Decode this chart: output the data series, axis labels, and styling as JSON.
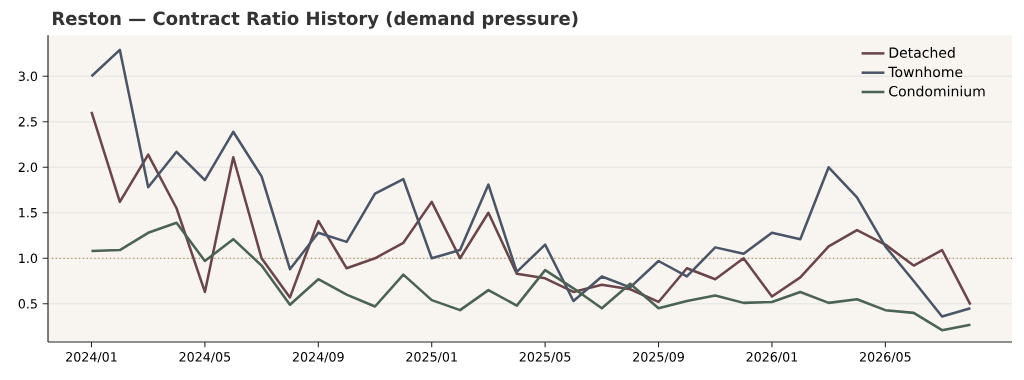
{
  "chart_data": {
    "type": "line",
    "title": "Reston — Contract Ratio History (demand pressure)",
    "x": [
      "2024-01",
      "2024-02",
      "2024-03",
      "2024-04",
      "2024-05",
      "2024-06",
      "2024-07",
      "2024-08",
      "2024-09",
      "2024-10",
      "2024-11",
      "2024-12",
      "2025-01",
      "2025-02",
      "2025-03",
      "2025-04",
      "2025-05",
      "2025-06",
      "2025-07",
      "2025-08",
      "2025-09",
      "2025-10",
      "2025-11",
      "2025-12",
      "2026-01",
      "2026-02",
      "2026-03",
      "2026-04",
      "2026-05",
      "2026-06",
      "2026-07",
      "2026-08"
    ],
    "series": [
      {
        "name": "Detached",
        "color": "#6b4549",
        "values": [
          2.61,
          1.62,
          2.14,
          1.55,
          0.63,
          2.11,
          1.0,
          0.57,
          1.41,
          0.89,
          1.0,
          1.17,
          1.62,
          1.0,
          1.5,
          0.83,
          0.78,
          0.63,
          0.71,
          0.66,
          0.52,
          0.89,
          0.77,
          1.0,
          0.58,
          0.79,
          1.13,
          1.31,
          1.15,
          0.92,
          1.09,
          0.49
        ]
      },
      {
        "name": "Townhome",
        "color": "#4a5568",
        "values": [
          3.0,
          3.29,
          1.78,
          2.17,
          1.86,
          2.39,
          1.9,
          0.88,
          1.28,
          1.18,
          1.71,
          1.87,
          1.0,
          1.09,
          1.81,
          0.85,
          1.15,
          0.53,
          0.8,
          0.68,
          0.97,
          0.8,
          1.12,
          1.05,
          1.28,
          1.21,
          2.0,
          1.67,
          1.13,
          0.75,
          0.36,
          0.45
        ]
      },
      {
        "name": "Condominium",
        "color": "#4b6352",
        "values": [
          1.08,
          1.09,
          1.28,
          1.39,
          0.97,
          1.21,
          0.92,
          0.49,
          0.77,
          0.6,
          0.47,
          0.82,
          0.54,
          0.43,
          0.65,
          0.48,
          0.87,
          0.67,
          0.45,
          0.72,
          0.45,
          0.53,
          0.59,
          0.51,
          0.52,
          0.63,
          0.51,
          0.55,
          0.43,
          0.4,
          0.21,
          0.27
        ]
      }
    ],
    "xlim": [
      "2023-11-15",
      "2026-09-15"
    ],
    "xticks": [
      {
        "value": "2024-01",
        "label": "2024/01"
      },
      {
        "value": "2024-05",
        "label": "2024/05"
      },
      {
        "value": "2024-09",
        "label": "2024/09"
      },
      {
        "value": "2025-01",
        "label": "2025/01"
      },
      {
        "value": "2025-05",
        "label": "2025/05"
      },
      {
        "value": "2025-09",
        "label": "2025/09"
      },
      {
        "value": "2026-01",
        "label": "2026/01"
      },
      {
        "value": "2026-05",
        "label": "2026/05"
      }
    ],
    "ylim": [
      0.08,
      3.45
    ],
    "yticks": [
      0.5,
      {
        "value": 1,
        "label": "1.0"
      },
      1.5,
      {
        "value": 2,
        "label": "2.0"
      },
      2.5,
      {
        "value": 3,
        "label": "3.0"
      }
    ],
    "ref_lines": [
      {
        "axis": "y",
        "value": 1.0,
        "color": "#b8955a",
        "line_style": "dotted"
      }
    ],
    "grid": "y",
    "legend": "top right",
    "marker": "none",
    "line_style": "solid"
  }
}
